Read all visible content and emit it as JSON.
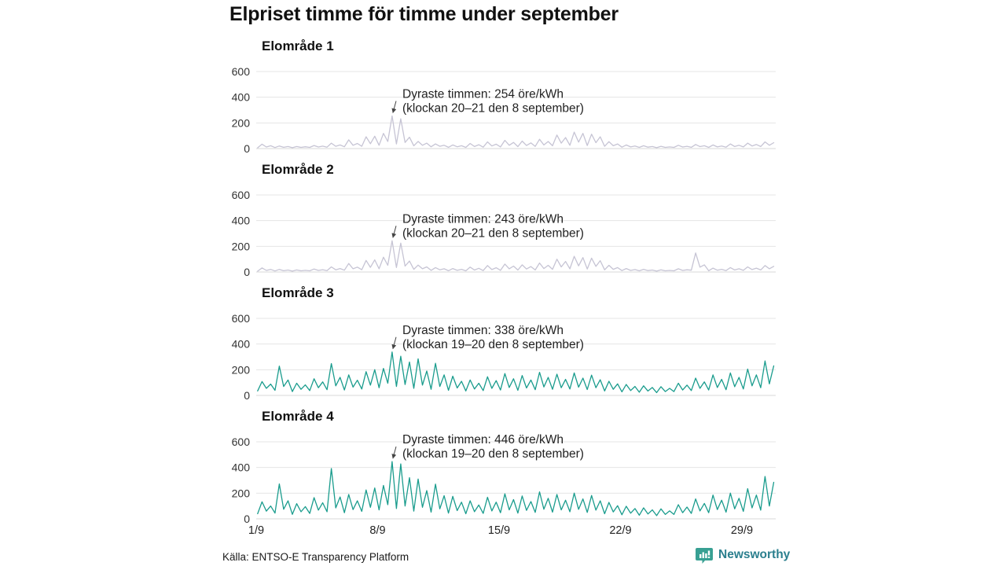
{
  "page": {
    "title": "Elpriset timme för timme under september",
    "source": "Källa: ENTSO-E Transparency Platform",
    "brand": "Newsworthy"
  },
  "colors": {
    "series_light": "#c6c4d4",
    "series_teal": "#1a9c8d",
    "gridline": "#e4e4e4",
    "zero_line": "#d8d8d8",
    "tick_text": "#333333",
    "annotation_text": "#222222",
    "arrow": "#444444",
    "brand_teal": "#38a093",
    "brand_text": "#2b7f8e"
  },
  "chart_data": [
    {
      "type": "line",
      "title": "Elområde 1",
      "unit": "öre/kWh",
      "color": "#c6c4d4",
      "ylim": [
        0,
        600
      ],
      "yticks": [
        0,
        200,
        400,
        600
      ],
      "x_tick_labels": [
        "1/9",
        "8/9",
        "15/9",
        "22/9",
        "29/9"
      ],
      "x_tick_days": [
        0,
        7,
        14,
        21,
        28
      ],
      "show_x_axis": false,
      "points_per_day": 4,
      "start_hour": 2,
      "hour_step": 6,
      "annotation": {
        "line1": "Dyraste timmen: 254 öre/kWh",
        "line2": "(klockan 20–21 den 8 september)",
        "peak_index": 31,
        "peak_value": 254
      },
      "values": [
        6,
        34,
        12,
        22,
        8,
        20,
        10,
        16,
        7,
        16,
        9,
        14,
        9,
        24,
        12,
        19,
        11,
        42,
        18,
        28,
        14,
        68,
        26,
        40,
        18,
        92,
        38,
        96,
        26,
        118,
        55,
        254,
        36,
        232,
        48,
        88,
        22,
        56,
        26,
        42,
        14,
        36,
        18,
        26,
        10,
        28,
        14,
        22,
        9,
        40,
        16,
        30,
        11,
        52,
        20,
        34,
        13,
        64,
        26,
        48,
        15,
        58,
        24,
        44,
        17,
        72,
        28,
        55,
        22,
        105,
        42,
        86,
        26,
        128,
        50,
        118,
        24,
        112,
        46,
        92,
        18,
        54,
        22,
        36,
        11,
        28,
        13,
        20,
        9,
        22,
        11,
        16,
        7,
        18,
        9,
        13,
        9,
        26,
        12,
        18,
        10,
        32,
        15,
        22,
        9,
        28,
        13,
        20,
        11,
        36,
        16,
        26,
        13,
        42,
        20,
        32,
        16,
        52,
        26,
        46
      ]
    },
    {
      "type": "line",
      "title": "Elområde 2",
      "unit": "öre/kWh",
      "color": "#c6c4d4",
      "ylim": [
        0,
        600
      ],
      "yticks": [
        0,
        200,
        400,
        600
      ],
      "x_tick_labels": [
        "1/9",
        "8/9",
        "15/9",
        "22/9",
        "29/9"
      ],
      "x_tick_days": [
        0,
        7,
        14,
        21,
        28
      ],
      "show_x_axis": false,
      "points_per_day": 4,
      "start_hour": 2,
      "hour_step": 6,
      "annotation": {
        "line1": "Dyraste timmen: 243 öre/kWh",
        "line2": "(klockan 20–21 den 8 september)",
        "peak_index": 31,
        "peak_value": 243
      },
      "values": [
        6,
        32,
        12,
        20,
        8,
        20,
        10,
        15,
        7,
        16,
        9,
        13,
        9,
        23,
        12,
        18,
        11,
        40,
        17,
        27,
        14,
        66,
        25,
        38,
        18,
        90,
        36,
        94,
        25,
        115,
        52,
        243,
        35,
        225,
        46,
        85,
        21,
        54,
        25,
        40,
        13,
        34,
        17,
        25,
        10,
        27,
        13,
        21,
        9,
        38,
        15,
        29,
        11,
        50,
        19,
        33,
        13,
        62,
        25,
        46,
        15,
        56,
        23,
        42,
        16,
        70,
        27,
        52,
        21,
        100,
        40,
        82,
        25,
        122,
        48,
        112,
        23,
        108,
        44,
        88,
        17,
        52,
        21,
        34,
        11,
        27,
        12,
        19,
        9,
        21,
        11,
        15,
        7,
        17,
        9,
        12,
        9,
        25,
        12,
        17,
        14,
        148,
        38,
        56,
        10,
        30,
        14,
        21,
        11,
        34,
        16,
        25,
        13,
        40,
        19,
        30,
        16,
        50,
        25,
        44
      ]
    },
    {
      "type": "line",
      "title": "Elområde 3",
      "unit": "öre/kWh",
      "color": "#1a9c8d",
      "ylim": [
        0,
        600
      ],
      "yticks": [
        0,
        200,
        400,
        600
      ],
      "x_tick_labels": [
        "1/9",
        "8/9",
        "15/9",
        "22/9",
        "29/9"
      ],
      "x_tick_days": [
        0,
        7,
        14,
        21,
        28
      ],
      "show_x_axis": false,
      "points_per_day": 4,
      "start_hour": 2,
      "hour_step": 6,
      "annotation": {
        "line1": "Dyraste timmen: 338 öre/kWh",
        "line2": "(klockan 19–20 den 8 september)",
        "peak_index": 31,
        "peak_value": 338
      },
      "values": [
        35,
        108,
        55,
        88,
        40,
        228,
        70,
        120,
        30,
        95,
        48,
        82,
        38,
        130,
        60,
        105,
        45,
        248,
        75,
        140,
        42,
        160,
        65,
        118,
        50,
        185,
        80,
        200,
        60,
        210,
        95,
        338,
        70,
        305,
        85,
        260,
        55,
        285,
        80,
        190,
        48,
        250,
        70,
        160,
        40,
        150,
        58,
        110,
        35,
        120,
        50,
        95,
        38,
        145,
        55,
        115,
        42,
        170,
        62,
        130,
        40,
        155,
        58,
        120,
        45,
        180,
        66,
        140,
        48,
        165,
        60,
        125,
        50,
        175,
        64,
        135,
        46,
        158,
        60,
        122,
        35,
        110,
        48,
        90,
        28,
        85,
        38,
        70,
        25,
        75,
        34,
        62,
        22,
        68,
        30,
        55,
        30,
        95,
        42,
        80,
        38,
        135,
        55,
        105,
        42,
        160,
        62,
        125,
        45,
        175,
        68,
        140,
        50,
        205,
        75,
        160,
        60,
        268,
        90,
        230
      ]
    },
    {
      "type": "line",
      "title": "Elområde 4",
      "unit": "öre/kWh",
      "color": "#1a9c8d",
      "ylim": [
        0,
        600
      ],
      "yticks": [
        0,
        200,
        400,
        600
      ],
      "x_tick_labels": [
        "1/9",
        "8/9",
        "15/9",
        "22/9",
        "29/9"
      ],
      "x_tick_days": [
        0,
        7,
        14,
        21,
        28
      ],
      "show_x_axis": true,
      "points_per_day": 4,
      "start_hour": 2,
      "hour_step": 6,
      "annotation": {
        "line1": "Dyraste timmen: 446 öre/kWh",
        "line2": "(klockan 19–20 den 8 september)",
        "peak_index": 31,
        "peak_value": 446
      },
      "values": [
        40,
        132,
        60,
        100,
        45,
        272,
        75,
        140,
        35,
        118,
        55,
        95,
        42,
        165,
        68,
        125,
        55,
        392,
        85,
        170,
        48,
        190,
        72,
        140,
        58,
        225,
        90,
        240,
        70,
        260,
        110,
        446,
        80,
        428,
        100,
        320,
        60,
        310,
        90,
        220,
        52,
        270,
        78,
        180,
        45,
        175,
        64,
        130,
        40,
        140,
        56,
        108,
        42,
        168,
        62,
        130,
        48,
        195,
        70,
        150,
        45,
        178,
        66,
        135,
        50,
        210,
        75,
        160,
        52,
        190,
        70,
        145,
        55,
        200,
        74,
        155,
        50,
        182,
        68,
        140,
        40,
        128,
        54,
        102,
        32,
        98,
        44,
        80,
        28,
        86,
        38,
        70,
        25,
        78,
        34,
        62,
        34,
        110,
        48,
        92,
        42,
        155,
        62,
        120,
        48,
        185,
        72,
        145,
        52,
        200,
        78,
        160,
        58,
        235,
        85,
        185,
        68,
        330,
        100,
        285
      ]
    }
  ]
}
